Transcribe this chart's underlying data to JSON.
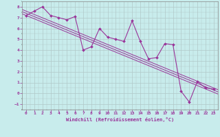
{
  "title": "",
  "xlabel": "Windchill (Refroidissement éolien,°C)",
  "bg_color": "#c8ecec",
  "line_color": "#993399",
  "grid_color": "#b0c8c8",
  "xlim": [
    -0.5,
    23.5
  ],
  "ylim": [
    -1.5,
    8.5
  ],
  "xticks": [
    0,
    1,
    2,
    3,
    4,
    5,
    6,
    7,
    8,
    9,
    10,
    11,
    12,
    13,
    14,
    15,
    16,
    17,
    18,
    19,
    20,
    21,
    22,
    23
  ],
  "yticks": [
    -1,
    0,
    1,
    2,
    3,
    4,
    5,
    6,
    7,
    8
  ],
  "data_x": [
    0,
    1,
    2,
    3,
    4,
    5,
    6,
    7,
    8,
    9,
    10,
    11,
    12,
    13,
    14,
    15,
    16,
    17,
    18,
    19,
    20,
    21,
    22,
    23
  ],
  "data_y": [
    7.2,
    7.6,
    8.0,
    7.2,
    7.0,
    6.8,
    7.1,
    4.0,
    4.3,
    6.0,
    5.2,
    5.0,
    4.8,
    6.7,
    4.8,
    3.2,
    3.3,
    4.6,
    4.5,
    0.2,
    -0.8,
    1.1,
    0.5,
    0.4
  ],
  "reg_y0": 7.4,
  "reg_y1": 0.3,
  "reg_offsets": [
    -0.2,
    0.0,
    0.2
  ]
}
